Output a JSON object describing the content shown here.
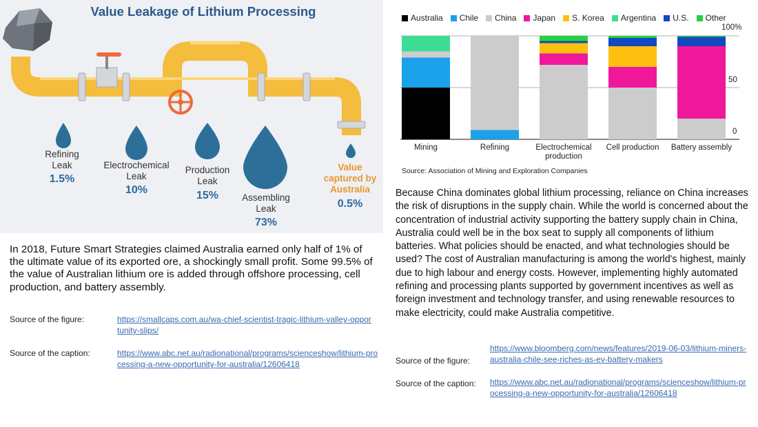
{
  "infographic": {
    "title": "Value Leakage of Lithium Processing",
    "leaks": [
      {
        "name": "Refining\nLeak",
        "pct": "1.5%"
      },
      {
        "name": "Electrochemical\nLeak",
        "pct": "10%"
      },
      {
        "name": "Production\nLeak",
        "pct": "15%"
      },
      {
        "name": "Assembling\nLeak",
        "pct": "73%"
      }
    ],
    "value_captured": {
      "label": "Value\ncaptured by\nAustralia",
      "pct": "0.5%"
    },
    "colors": {
      "pipe": "#f5bd3e",
      "drop": "#2e6f99",
      "valve": "#ee6a3a",
      "title": "#2d5a8a",
      "captured": "#e8962a"
    }
  },
  "left_caption": {
    "text": "In 2018, Future Smart Strategies claimed Australia earned only half of 1% of the ultimate value of its exported ore, a shockingly small profit. Some 99.5% of the value of Australian lithium ore is added through offshore processing, cell production, and battery assembly.",
    "figure_source_label": "Source of the figure:",
    "figure_source_url": "https://smallcaps.com.au/wa-chief-scientist-tragic-lithium-valley-opportunity-slips/",
    "caption_source_label": "Source of the caption:",
    "caption_source_url": "https://www.abc.net.au/radionational/programs/scienceshow/lithium-processing-a-new-opportunity-for-australia/12606418"
  },
  "chart_data": {
    "type": "bar",
    "stacked": true,
    "categories": [
      "Mining",
      "Refining",
      "Electrochemical production",
      "Cell production",
      "Battery assembly"
    ],
    "category_lines": [
      [
        "Mining"
      ],
      [
        "Refining"
      ],
      [
        "Electrochemical",
        "production"
      ],
      [
        "Cell production"
      ],
      [
        "Battery assembly"
      ]
    ],
    "series": [
      {
        "name": "Australia",
        "color": "#000000",
        "values": [
          50,
          0,
          0,
          0,
          0
        ]
      },
      {
        "name": "Chile",
        "color": "#1aa1ea",
        "values": [
          29,
          9,
          0,
          0,
          0
        ]
      },
      {
        "name": "China",
        "color": "#cccccc",
        "values": [
          6,
          91,
          72,
          50,
          20
        ]
      },
      {
        "name": "Japan",
        "color": "#f0189a",
        "values": [
          0,
          0,
          11,
          20,
          70
        ]
      },
      {
        "name": "S. Korea",
        "color": "#fdc010",
        "values": [
          0,
          0,
          10,
          20,
          0
        ]
      },
      {
        "name": "Argentina",
        "color": "#3ddc93",
        "values": [
          15,
          0,
          0,
          0,
          0
        ]
      },
      {
        "name": "U.S.",
        "color": "#1447c2",
        "values": [
          0,
          0,
          2,
          8,
          9
        ]
      },
      {
        "name": "Other",
        "color": "#24d23c",
        "values": [
          0,
          0,
          5,
          2,
          1
        ]
      }
    ],
    "y_ticks": [
      "100%",
      "50",
      "0"
    ],
    "ylim": [
      0,
      100
    ],
    "source": "Source: Association of Mining and Exploration Companies"
  },
  "right_caption": {
    "text": "Because China dominates global lithium processing, reliance on China increases the risk of disruptions in the supply chain. While the world is concerned about the concentration of industrial activity supporting the battery supply chain in China, Australia could well be in the box seat to supply all components of lithium batteries. What policies should be enacted, and what technologies should be used? The cost of Australian manufacturing is among the world's highest, mainly due to high labour and energy costs. However, implementing highly automated refining and processing plants supported by government incentives as well as foreign investment and technology transfer, and using renewable resources to make electricity,  could make Australia competitive.",
    "figure_source_label": "Source of the figure:",
    "figure_source_url": "https://www.bloomberg.com/news/features/2019-06-03/lithium-miners-australia-chile-see-riches-as-ev-battery-makers",
    "caption_source_label": "Source of the caption:",
    "caption_source_url": "https://www.abc.net.au/radionational/programs/scienceshow/lithium-processing-a-new-opportunity-for-australia/12606418"
  }
}
